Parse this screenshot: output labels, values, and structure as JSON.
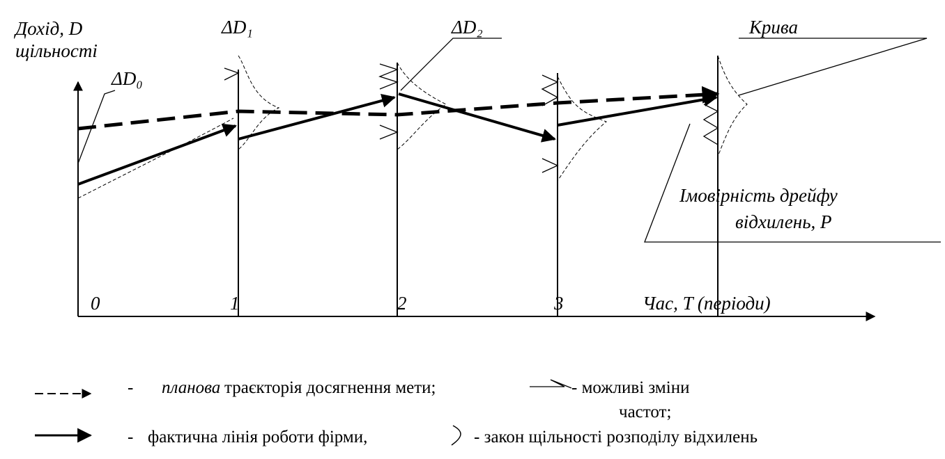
{
  "diagram": {
    "y_axis_label": "Дохід, D",
    "density_word": "щільності",
    "delta_labels": [
      "ΔD₀",
      "ΔD₁",
      "ΔD₂"
    ],
    "periods": [
      "0",
      "1",
      "2",
      "3"
    ],
    "x_axis_label": "Час, T (періоди)",
    "curve_word": "Крива",
    "probability_label": [
      "Імовірність дрейфу",
      "відхилень, P"
    ]
  },
  "legend": {
    "dash": "-",
    "planned_italic": "планова",
    "planned_text": "траєкторія досягнення мети;",
    "changes": "- можливі зміни",
    "changes_cont": "частот;",
    "actual": "фактична лінія роботи фірми,",
    "density_law": "- закон  щільності розподілу відхилень"
  }
}
